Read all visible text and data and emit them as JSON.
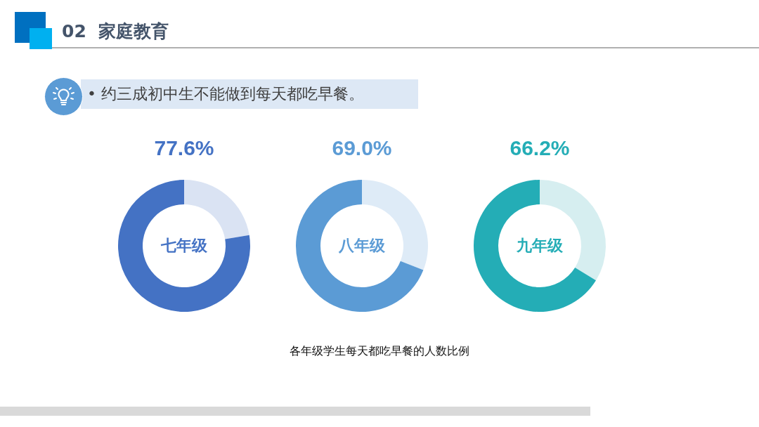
{
  "chart_data": [
    {
      "type": "other",
      "title": "02  家庭教育",
      "subtitle": "• 约三成初中生不能做到每天都吃早餐。",
      "annotations": [
        "各年级学生每天都吃早餐的人数比例"
      ]
    },
    {
      "type": "donut",
      "title": "七年级",
      "categories": [
        null,
        null
      ],
      "values": [
        77.6,
        22.4
      ],
      "colors": [
        "#4472c4",
        "#dae3f3"
      ],
      "value_labels": [
        "77.6%",
        null
      ]
    },
    {
      "type": "donut",
      "title": "八年级",
      "categories": [
        null,
        null
      ],
      "values": [
        69.0,
        31.0
      ],
      "colors": [
        "#5b9bd5",
        "#deebf7"
      ],
      "value_labels": [
        "69.0%",
        null
      ]
    },
    {
      "type": "donut",
      "title": "九年级",
      "categories": [
        null,
        null
      ],
      "values": [
        66.2,
        33.8
      ],
      "colors": [
        "#24adb6",
        "#d6eef0"
      ],
      "value_labels": [
        "66.2%",
        null
      ]
    }
  ]
}
